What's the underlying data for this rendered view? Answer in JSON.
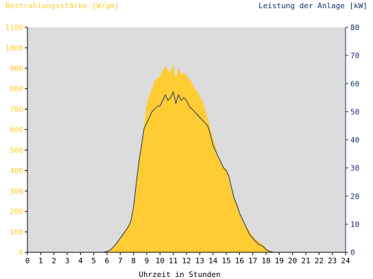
{
  "chart_data": {
    "type": "area",
    "left_title": "Bestrahlungsstärke [W/qm]",
    "right_title": "Leistung der Anlage [kW]",
    "xlabel": "Uhrzeit in Stunden",
    "x_ticks": [
      "0",
      "1",
      "2",
      "3",
      "4",
      "5",
      "6",
      "7",
      "8",
      "9",
      "10",
      "11",
      "12",
      "13",
      "14",
      "15",
      "16",
      "17",
      "18",
      "19",
      "20",
      "21",
      "22",
      "23",
      "24"
    ],
    "y_left_ticks": [
      "0",
      "100",
      "200",
      "300",
      "400",
      "500",
      "600",
      "700",
      "800",
      "900",
      "1000",
      "1100"
    ],
    "y_right_ticks": [
      "0",
      "10",
      "20",
      "30",
      "40",
      "50",
      "60",
      "70",
      "80"
    ],
    "xlim": [
      0,
      24
    ],
    "ylim_left": [
      0,
      1100
    ],
    "ylim_right": [
      0,
      80
    ],
    "grid": false,
    "series": [
      {
        "axis": "left",
        "color": "#ffcc33",
        "x": [
          0,
          5.7,
          6.0,
          6.3,
          6.6,
          7.0,
          7.3,
          7.6,
          7.8,
          8.0,
          8.2,
          8.4,
          8.6,
          8.8,
          9.0,
          9.2,
          9.4,
          9.6,
          9.8,
          10.0,
          10.2,
          10.4,
          10.6,
          10.8,
          11.0,
          11.2,
          11.4,
          11.6,
          11.8,
          12.0,
          12.2,
          12.4,
          12.6,
          12.8,
          13.0,
          13.2,
          13.4,
          13.6,
          13.8,
          14.0,
          14.2,
          14.4,
          14.6,
          14.8,
          15.0,
          15.2,
          15.4,
          15.6,
          15.8,
          16.0,
          16.2,
          16.4,
          16.6,
          16.8,
          17.0,
          17.2,
          17.4,
          17.6,
          17.8,
          18.0,
          18.2,
          18.4,
          18.6,
          18.8,
          19.0,
          19.2,
          24
        ],
        "values": [
          0,
          0,
          5,
          15,
          35,
          70,
          100,
          130,
          160,
          230,
          330,
          450,
          530,
          620,
          720,
          770,
          800,
          840,
          850,
          860,
          890,
          910,
          890,
          880,
          920,
          850,
          900,
          870,
          880,
          860,
          850,
          830,
          800,
          790,
          760,
          740,
          700,
          650,
          610,
          560,
          520,
          460,
          440,
          420,
          410,
          380,
          320,
          270,
          240,
          190,
          160,
          140,
          120,
          100,
          80,
          65,
          55,
          45,
          35,
          20,
          10,
          5,
          2,
          0,
          0,
          0,
          0
        ],
        "data_name": "irradiance-area"
      },
      {
        "axis": "right",
        "color": "#1a2f6b",
        "x": [
          0,
          5.7,
          6.0,
          6.3,
          6.6,
          7.0,
          7.3,
          7.6,
          7.8,
          8.0,
          8.2,
          8.4,
          8.6,
          8.8,
          9.0,
          9.2,
          9.4,
          9.6,
          9.8,
          10.0,
          10.2,
          10.4,
          10.6,
          10.8,
          11.0,
          11.2,
          11.4,
          11.6,
          11.8,
          12.0,
          12.2,
          12.4,
          12.6,
          12.8,
          13.0,
          13.2,
          13.4,
          13.6,
          13.8,
          14.0,
          14.2,
          14.4,
          14.6,
          14.8,
          15.0,
          15.2,
          15.4,
          15.6,
          15.8,
          16.0,
          16.2,
          16.4,
          16.6,
          16.8,
          17.0,
          17.2,
          17.4,
          17.6,
          17.8,
          18.0,
          18.2,
          18.4,
          18.6,
          18.8,
          19.0,
          19.2,
          24
        ],
        "values": [
          0,
          0,
          0.3,
          1.0,
          2.5,
          5,
          7,
          9,
          11,
          16,
          24,
          32,
          38,
          44,
          46,
          48,
          50,
          51,
          52,
          52,
          54,
          56,
          54,
          55,
          57,
          53,
          56,
          54,
          55,
          54,
          52,
          51,
          50,
          49,
          48,
          47,
          46,
          45,
          42,
          38,
          36,
          34,
          32,
          30,
          29,
          27,
          23,
          19,
          17,
          14,
          12,
          10,
          8,
          6,
          5,
          4,
          3,
          2.5,
          2,
          1,
          0.5,
          0.2,
          0,
          0,
          0,
          0,
          0
        ],
        "data_name": "power-line"
      }
    ]
  }
}
